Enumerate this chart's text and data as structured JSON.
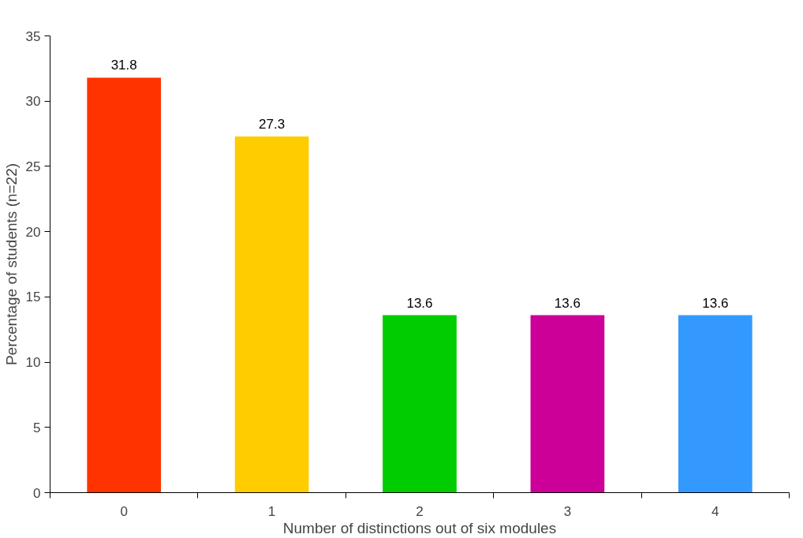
{
  "chart_data": {
    "type": "bar",
    "xlabel": "Number of distinctions out of six modules",
    "ylabel": "Percentage of students (n=22)",
    "categories": [
      "0",
      "1",
      "2",
      "3",
      "4"
    ],
    "values": [
      31.8,
      27.3,
      13.6,
      13.6,
      13.6
    ],
    "colors": [
      "#ff3300",
      "#ffcc00",
      "#00cc00",
      "#cc0099",
      "#3399ff"
    ],
    "ylim": [
      0,
      35
    ],
    "yticks": [
      0,
      5,
      10,
      15,
      20,
      25,
      30,
      35
    ],
    "grid": false,
    "data_labels": true
  }
}
